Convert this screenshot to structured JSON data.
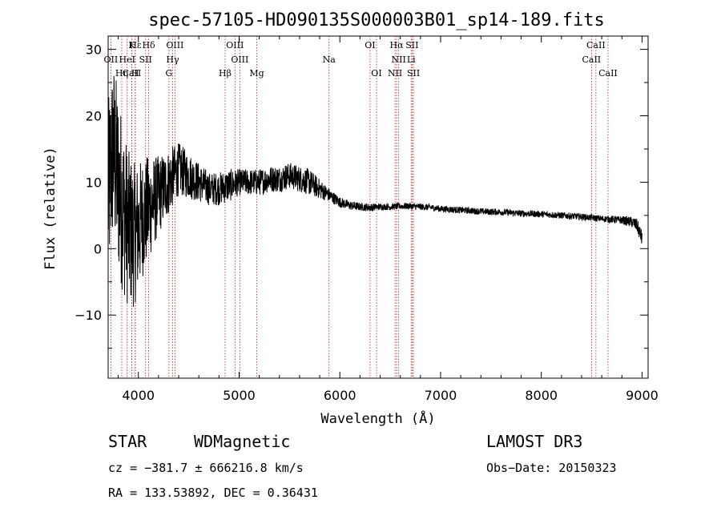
{
  "chart_data": {
    "type": "line",
    "title": "spec-57105-HD090135S000003B01_sp14-189.fits",
    "xlabel": "Wavelength (Å)",
    "ylabel": "Flux (relative)",
    "xlim": [
      3700,
      9060
    ],
    "ylim": [
      -19.5,
      32
    ],
    "xticks": [
      4000,
      5000,
      6000,
      7000,
      8000,
      9000
    ],
    "yticks": [
      -10,
      0,
      10,
      20,
      30
    ],
    "tick_labels_x": [
      "4000",
      "5000",
      "6000",
      "7000",
      "8000",
      "9000"
    ],
    "tick_labels_y": [
      "−10",
      "0",
      "10",
      "20",
      "30"
    ],
    "series": [
      {
        "name": "flux",
        "x": [
          3700,
          3750,
          3800,
          3850,
          3900,
          3950,
          4000,
          4050,
          4100,
          4150,
          4200,
          4300,
          4400,
          4500,
          4600,
          4700,
          4800,
          4900,
          5000,
          5100,
          5200,
          5300,
          5400,
          5500,
          5600,
          5700,
          5800,
          5900,
          6000,
          6100,
          6200,
          6300,
          6400,
          6500,
          6600,
          6700,
          6800,
          6900,
          7000,
          7200,
          7400,
          7600,
          7800,
          8000,
          8200,
          8400,
          8600,
          8800,
          8900,
          8950,
          9000
        ],
        "y": [
          8,
          15,
          10,
          6,
          3,
          2,
          3,
          5,
          6,
          7,
          8,
          10,
          12,
          11,
          10,
          9,
          9,
          9.5,
          10,
          10,
          10,
          10.5,
          10.5,
          11,
          10.5,
          10,
          9,
          8,
          7,
          6.5,
          6.3,
          6.2,
          6.3,
          6.3,
          6.4,
          6.4,
          6.3,
          6.2,
          6.0,
          5.8,
          5.6,
          5.5,
          5.3,
          5.2,
          5.0,
          4.8,
          4.5,
          4.3,
          4.0,
          3.5,
          1.5
        ],
        "noise": [
          14,
          14,
          14,
          13,
          12,
          11,
          10,
          9,
          8,
          7,
          6,
          5,
          4,
          3.5,
          3,
          2.5,
          2.5,
          2.5,
          2,
          2,
          2,
          2,
          2,
          2,
          2,
          2,
          1.5,
          1.0,
          0.8,
          0.7,
          0.6,
          0.6,
          0.5,
          0.5,
          0.5,
          0.5,
          0.5,
          0.5,
          0.5,
          0.5,
          0.5,
          0.5,
          0.5,
          0.5,
          0.5,
          0.5,
          0.5,
          0.6,
          0.8,
          1.0,
          1.2
        ]
      }
    ],
    "lines": [
      {
        "label": "Hε",
        "wavelength": 3970,
        "row": 0
      },
      {
        "label": "K",
        "wavelength": 3934,
        "row": 0
      },
      {
        "label": "Hδ",
        "wavelength": 4102,
        "row": 0
      },
      {
        "label": "OIII",
        "wavelength": 4363,
        "row": 0
      },
      {
        "label": "OIII",
        "wavelength": 4959,
        "row": 0
      },
      {
        "label": "OI",
        "wavelength": 6300,
        "row": 0
      },
      {
        "label": "Hα",
        "wavelength": 6563,
        "row": 0
      },
      {
        "label": "SII",
        "wavelength": 6717,
        "row": 0
      },
      {
        "label": "CaII",
        "wavelength": 8542,
        "row": 0
      },
      {
        "label": "OII",
        "wavelength": 3727,
        "row": 1
      },
      {
        "label": "HeI",
        "wavelength": 3889,
        "row": 1
      },
      {
        "label": "SII",
        "wavelength": 4072,
        "row": 1
      },
      {
        "label": "Hγ",
        "wavelength": 4340,
        "row": 1
      },
      {
        "label": "OIII",
        "wavelength": 5007,
        "row": 1
      },
      {
        "label": "Na",
        "wavelength": 5893,
        "row": 1
      },
      {
        "label": "NII",
        "wavelength": 6584,
        "row": 1
      },
      {
        "label": "Li",
        "wavelength": 6708,
        "row": 1
      },
      {
        "label": "CaII",
        "wavelength": 8498,
        "row": 1
      },
      {
        "label": "CaII",
        "wavelength": 3934,
        "row": 2
      },
      {
        "label": "Hη",
        "wavelength": 3835,
        "row": 2
      },
      {
        "label": "H",
        "wavelength": 3968,
        "row": 2
      },
      {
        "label": "G",
        "wavelength": 4304,
        "row": 2
      },
      {
        "label": "Hβ",
        "wavelength": 4861,
        "row": 2
      },
      {
        "label": "Mg",
        "wavelength": 5175,
        "row": 2
      },
      {
        "label": "OI",
        "wavelength": 6364,
        "row": 2
      },
      {
        "label": "NII",
        "wavelength": 6548,
        "row": 2
      },
      {
        "label": "SII",
        "wavelength": 6731,
        "row": 2
      },
      {
        "label": "CaII",
        "wavelength": 8662,
        "row": 2
      }
    ]
  },
  "info": {
    "object_class": "STAR",
    "subclass": "WDMagnetic",
    "survey": "LAMOST DR3",
    "cz": "cz = −381.7 ± 666216.8 km/s",
    "obs_date": "Obs−Date: 20150323",
    "radec": "RA = 133.53892, DEC =    0.36431"
  },
  "colors": {
    "line_marker": "#b22222",
    "spectrum": "#000000"
  }
}
